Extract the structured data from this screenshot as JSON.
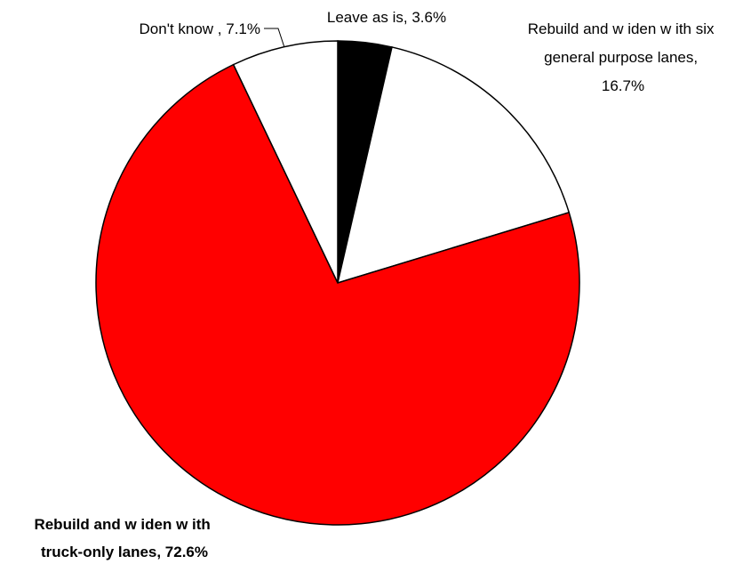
{
  "chart_data": {
    "type": "pie",
    "title": "",
    "start_angle_deg": 0,
    "direction": "clockwise",
    "slices": [
      {
        "name": "Leave as is",
        "value": 3.6,
        "color": "#000000",
        "label_lines": [
          "Leave as is, 3.6%"
        ],
        "bold": false
      },
      {
        "name": "Rebuild and widen with six general purpose lanes",
        "value": 16.7,
        "color": "#ffffff",
        "label_lines": [
          "Rebuild and w iden w ith six",
          "general purpose lanes,",
          "16.7%"
        ],
        "bold": false
      },
      {
        "name": "Rebuild and widen with truck-only lanes",
        "value": 72.6,
        "color": "#ff0000",
        "label_lines": [
          "Rebuild and w iden w ith",
          "truck-only lanes, 72.6%"
        ],
        "bold": true
      },
      {
        "name": "Don't know",
        "value": 7.1,
        "color": "#ffffff",
        "label_lines": [
          "Don't know , 7.1%"
        ],
        "bold": false
      }
    ]
  }
}
